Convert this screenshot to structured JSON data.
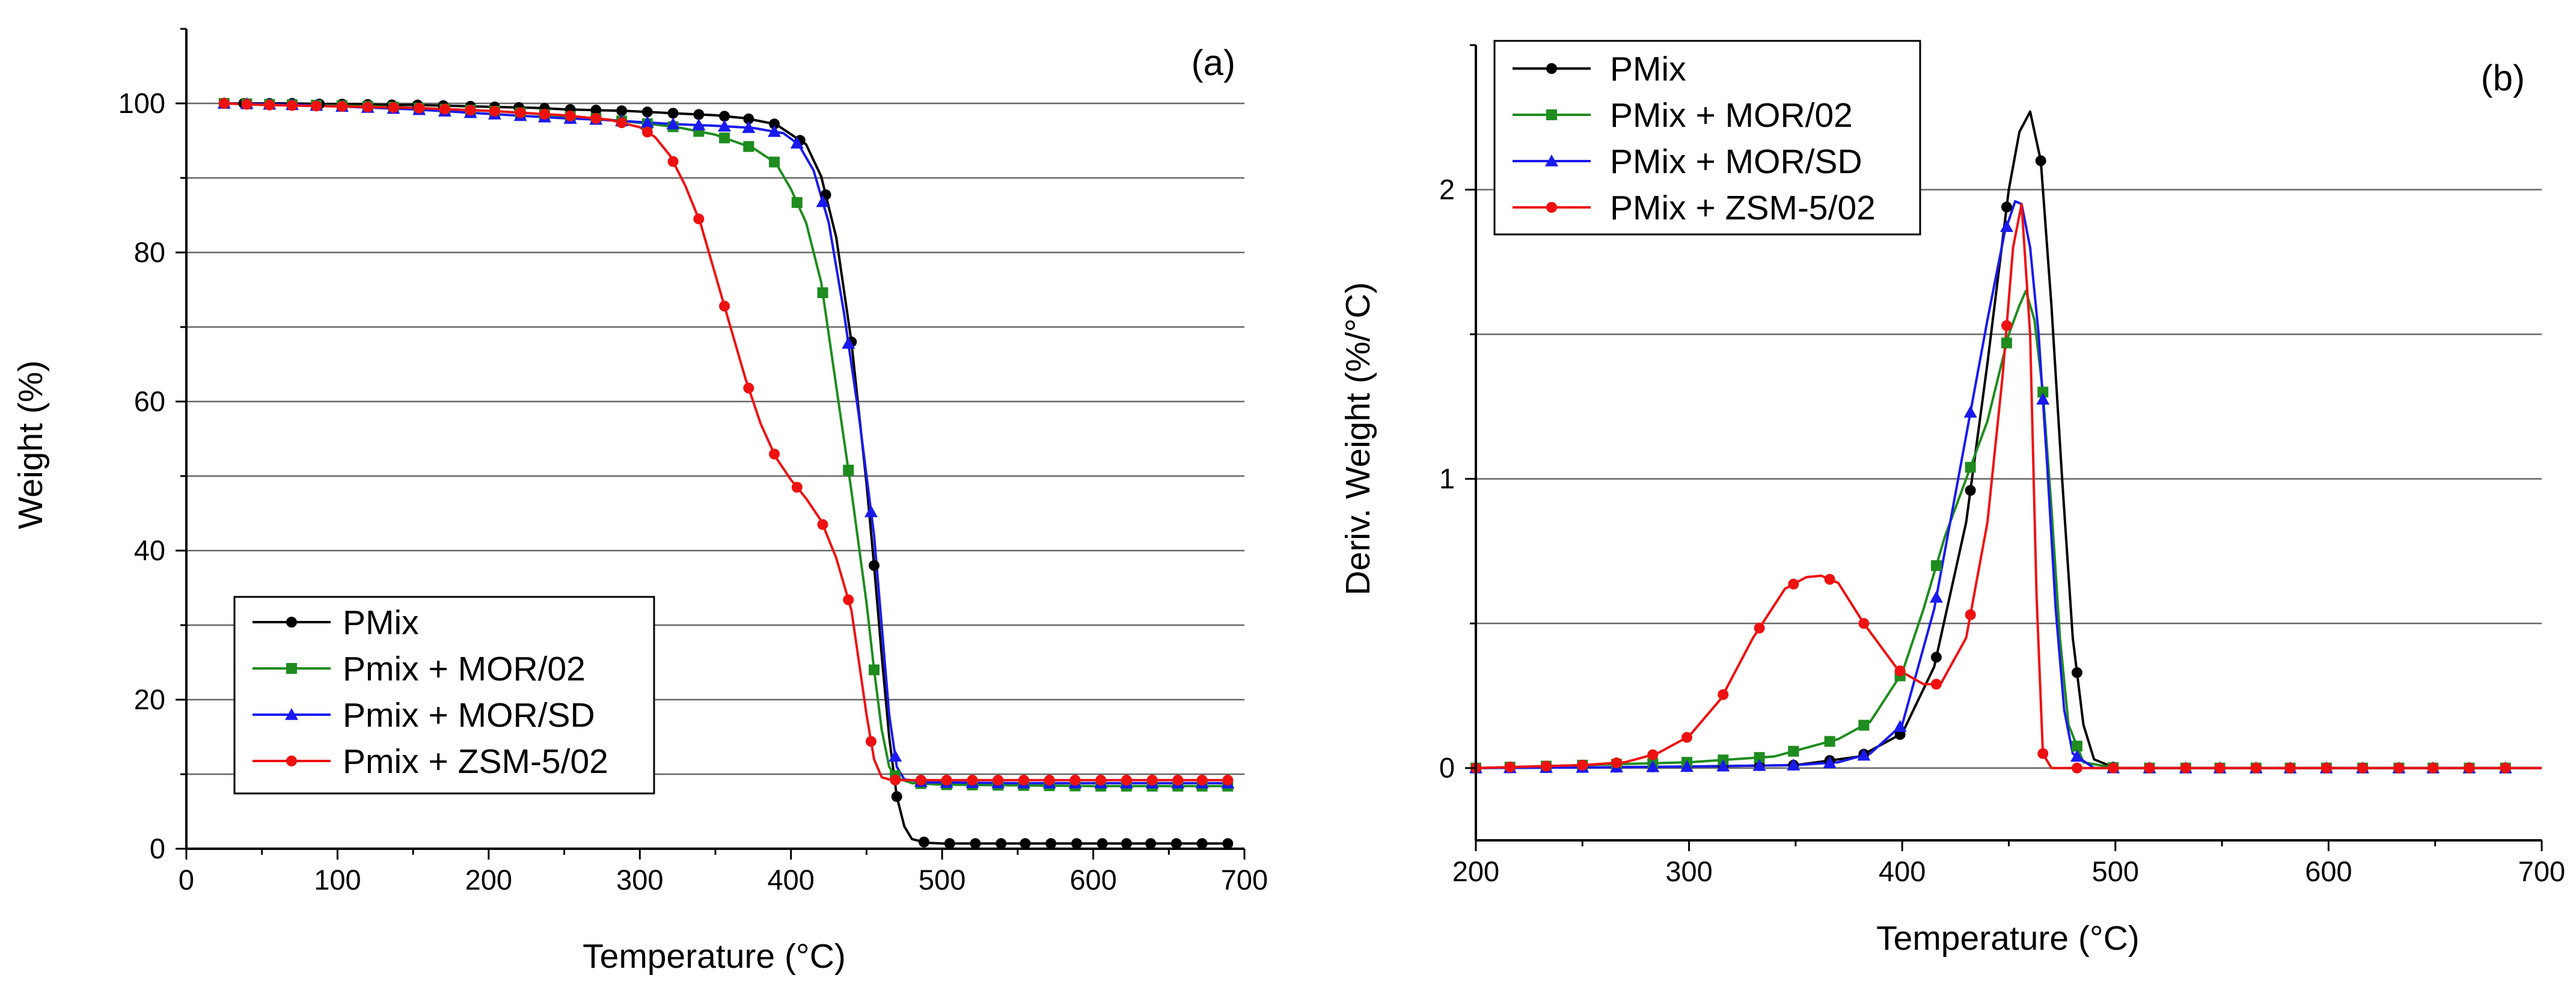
{
  "chart_data": [
    {
      "panel": "(a)",
      "type": "line",
      "xlabel": "Temperature (°C)",
      "ylabel": "Weight (%)",
      "xlim": [
        0,
        700
      ],
      "ylim": [
        0,
        110
      ],
      "xticks": [
        0,
        100,
        200,
        300,
        400,
        500,
        600,
        700
      ],
      "yticks": [
        0,
        20,
        40,
        60,
        80,
        100
      ],
      "grid_y": [
        10,
        20,
        30,
        40,
        50,
        60,
        70,
        80,
        90,
        100
      ],
      "legend_position": "bottom-left",
      "series": [
        {
          "name": "PMix",
          "color": "#000000",
          "marker": "circle",
          "x": [
            25,
            40,
            55,
            70,
            90,
            110,
            130,
            150,
            170,
            190,
            210,
            230,
            250,
            270,
            290,
            310,
            330,
            350,
            370,
            390,
            410,
            420,
            430,
            440,
            450,
            455,
            460,
            465,
            470,
            475,
            480,
            490,
            500,
            520,
            540,
            560,
            580,
            600,
            620,
            640,
            660,
            690
          ],
          "y": [
            100,
            100,
            100,
            100,
            99.9,
            99.9,
            99.8,
            99.8,
            99.7,
            99.6,
            99.5,
            99.4,
            99.2,
            99.1,
            99.0,
            98.8,
            98.6,
            98.4,
            98.0,
            97.2,
            94.5,
            90.2,
            82,
            68,
            49,
            38,
            26,
            15,
            7,
            3,
            1.3,
            0.8,
            0.7,
            0.7,
            0.7,
            0.7,
            0.7,
            0.7,
            0.7,
            0.7,
            0.7,
            0.7
          ],
          "markers_x": [
            25,
            38,
            55,
            70,
            88,
            103,
            120,
            136,
            153,
            170,
            188,
            204,
            220,
            237,
            254,
            271,
            288,
            305,
            322,
            339,
            356,
            372,
            389,
            406,
            423,
            440,
            455,
            470,
            488,
            505,
            522,
            539,
            555,
            572,
            589,
            606,
            622,
            638,
            655,
            672,
            689
          ]
        },
        {
          "name": "Pmix + MOR/02",
          "color": "#1e8c1e",
          "marker": "square",
          "x": [
            25,
            50,
            75,
            100,
            125,
            150,
            175,
            200,
            225,
            250,
            275,
            300,
            325,
            350,
            375,
            390,
            400,
            410,
            420,
            430,
            440,
            450,
            455,
            460,
            465,
            470,
            480,
            500,
            550,
            600,
            650,
            690
          ],
          "y": [
            100,
            99.9,
            99.8,
            99.7,
            99.6,
            99.4,
            99.2,
            99.0,
            98.7,
            98.3,
            97.9,
            97.4,
            96.8,
            95.8,
            94.0,
            92.0,
            88.5,
            84,
            76,
            62,
            48,
            33,
            24,
            16,
            11,
            9.5,
            8.8,
            8.6,
            8.5,
            8.4,
            8.4,
            8.4
          ],
          "markers_x": [
            25,
            40,
            55,
            70,
            86,
            103,
            120,
            137,
            154,
            171,
            188,
            204,
            221,
            237,
            254,
            271,
            288,
            305,
            322,
            339,
            356,
            372,
            389,
            404,
            421,
            438,
            455,
            469,
            486,
            503,
            520,
            537,
            554,
            571,
            588,
            605,
            622,
            639,
            656,
            672,
            689
          ]
        },
        {
          "name": "Pmix + MOR/SD",
          "color": "#1a1aee",
          "marker": "triangle",
          "x": [
            25,
            50,
            75,
            100,
            125,
            150,
            175,
            200,
            225,
            250,
            275,
            300,
            325,
            350,
            375,
            395,
            405,
            415,
            425,
            435,
            445,
            455,
            460,
            465,
            470,
            475,
            490,
            550,
            600,
            650,
            690
          ],
          "y": [
            100,
            99.9,
            99.8,
            99.6,
            99.4,
            99.2,
            98.9,
            98.6,
            98.3,
            98.0,
            97.8,
            97.5,
            97.2,
            97.0,
            96.7,
            96.0,
            94.5,
            91,
            84,
            72,
            58,
            42,
            30,
            18,
            11,
            9.3,
            8.9,
            8.8,
            8.8,
            8.8,
            8.8
          ],
          "markers_x": [
            25,
            40,
            55,
            70,
            86,
            103,
            120,
            137,
            154,
            171,
            188,
            204,
            221,
            237,
            254,
            271,
            288,
            305,
            322,
            339,
            356,
            372,
            389,
            404,
            421,
            438,
            453,
            469,
            486,
            503,
            520,
            537,
            554,
            571,
            588,
            605,
            622,
            639,
            656,
            672,
            689
          ]
        },
        {
          "name": "Pmix + ZSM-5/02",
          "color": "#ee1111",
          "marker": "circle",
          "x": [
            25,
            50,
            100,
            150,
            200,
            250,
            280,
            300,
            310,
            320,
            330,
            340,
            350,
            360,
            370,
            380,
            390,
            400,
            410,
            420,
            430,
            440,
            445,
            450,
            455,
            460,
            465,
            470,
            480,
            500,
            550,
            600,
            650,
            690
          ],
          "y": [
            100,
            99.8,
            99.6,
            99.4,
            99.0,
            98.4,
            97.8,
            96.8,
            95.5,
            93,
            89,
            84,
            77,
            70,
            63,
            57,
            52.5,
            49.5,
            47,
            44,
            39,
            32,
            25,
            18,
            12,
            9.6,
            9.3,
            9.2,
            9.2,
            9.2,
            9.2,
            9.2,
            9.2,
            9.2
          ],
          "markers_x": [
            25,
            40,
            55,
            70,
            86,
            103,
            120,
            137,
            154,
            171,
            188,
            204,
            221,
            237,
            254,
            271,
            288,
            305,
            322,
            339,
            356,
            372,
            389,
            404,
            421,
            438,
            453,
            469,
            486,
            503,
            520,
            537,
            554,
            571,
            588,
            605,
            622,
            639,
            656,
            672,
            689
          ]
        }
      ]
    },
    {
      "panel": "(b)",
      "type": "line",
      "xlabel": "Temperature (°C)",
      "ylabel": "Deriv. Weight (%/°C)",
      "xlim": [
        200,
        700
      ],
      "ylim": [
        -0.25,
        2.5
      ],
      "xticks": [
        200,
        300,
        400,
        500,
        600,
        700
      ],
      "yticks": [
        0,
        1,
        2
      ],
      "grid_y": [
        0,
        0.5,
        1,
        1.5,
        2
      ],
      "legend_position": "top-left",
      "series": [
        {
          "name": "PMix",
          "color": "#000000",
          "marker": "circle",
          "x": [
            200,
            250,
            300,
            350,
            380,
            400,
            415,
            430,
            440,
            450,
            455,
            460,
            465,
            470,
            475,
            480,
            485,
            490,
            500,
            550,
            600,
            650,
            700
          ],
          "y": [
            0,
            0.002,
            0.005,
            0.01,
            0.04,
            0.12,
            0.35,
            0.85,
            1.4,
            2.0,
            2.2,
            2.27,
            2.1,
            1.6,
            1.0,
            0.45,
            0.15,
            0.03,
            0,
            0,
            0,
            0,
            0
          ],
          "markers_x": [
            200,
            216,
            233,
            250,
            266,
            283,
            299,
            316,
            333,
            349,
            366,
            382,
            399,
            416,
            432,
            449,
            465,
            482,
            499,
            516,
            533,
            549,
            566,
            582,
            599,
            616,
            633,
            649,
            666,
            683
          ]
        },
        {
          "name": "PMix + MOR/02",
          "color": "#1e8c1e",
          "marker": "square",
          "x": [
            200,
            250,
            300,
            340,
            370,
            385,
            400,
            410,
            420,
            430,
            440,
            450,
            455,
            458,
            462,
            466,
            470,
            474,
            478,
            485,
            500,
            550,
            600,
            650,
            700
          ],
          "y": [
            0,
            0.01,
            0.02,
            0.04,
            0.1,
            0.16,
            0.33,
            0.55,
            0.8,
            1.0,
            1.2,
            1.5,
            1.6,
            1.65,
            1.55,
            1.3,
            0.9,
            0.45,
            0.15,
            0.02,
            0,
            0,
            0,
            0,
            0
          ],
          "markers_x": [
            200,
            216,
            233,
            250,
            266,
            283,
            299,
            316,
            333,
            349,
            366,
            382,
            399,
            416,
            432,
            449,
            466,
            482,
            499,
            516,
            533,
            549,
            566,
            582,
            599,
            616,
            633,
            649,
            666,
            683
          ]
        },
        {
          "name": "PMix + MOR/SD",
          "color": "#1a1aee",
          "marker": "triangle",
          "x": [
            200,
            250,
            300,
            350,
            370,
            385,
            400,
            415,
            430,
            440,
            448,
            453,
            456,
            460,
            464,
            468,
            472,
            476,
            480,
            490,
            500,
            550,
            600,
            650,
            700
          ],
          "y": [
            0,
            0.002,
            0.005,
            0.01,
            0.02,
            0.05,
            0.15,
            0.55,
            1.15,
            1.55,
            1.85,
            1.96,
            1.95,
            1.8,
            1.5,
            1.05,
            0.55,
            0.2,
            0.05,
            0,
            0,
            0,
            0,
            0,
            0
          ],
          "markers_x": [
            200,
            216,
            233,
            250,
            266,
            283,
            299,
            316,
            333,
            349,
            366,
            382,
            399,
            416,
            432,
            449,
            466,
            482,
            499,
            516,
            533,
            549,
            566,
            582,
            599,
            616,
            633,
            649,
            666,
            683
          ]
        },
        {
          "name": "PMix + ZSM-5/02",
          "color": "#ee1111",
          "marker": "circle",
          "x": [
            200,
            250,
            270,
            285,
            300,
            315,
            330,
            345,
            355,
            362,
            370,
            382,
            398,
            410,
            418,
            430,
            440,
            447,
            452,
            456,
            460,
            463,
            466,
            470,
            500,
            550,
            600,
            650,
            700
          ],
          "y": [
            0,
            0.01,
            0.02,
            0.05,
            0.11,
            0.24,
            0.45,
            0.62,
            0.66,
            0.665,
            0.64,
            0.5,
            0.34,
            0.29,
            0.29,
            0.45,
            0.85,
            1.35,
            1.8,
            1.95,
            1.5,
            0.6,
            0.05,
            0,
            0,
            0,
            0,
            0,
            0
          ],
          "markers_x": [
            200,
            216,
            233,
            250,
            266,
            283,
            299,
            316,
            333,
            349,
            366,
            382,
            399,
            416,
            432,
            449,
            466,
            482,
            499,
            516,
            533,
            549,
            566,
            582,
            599,
            616,
            633,
            649,
            666,
            683
          ]
        }
      ]
    }
  ]
}
